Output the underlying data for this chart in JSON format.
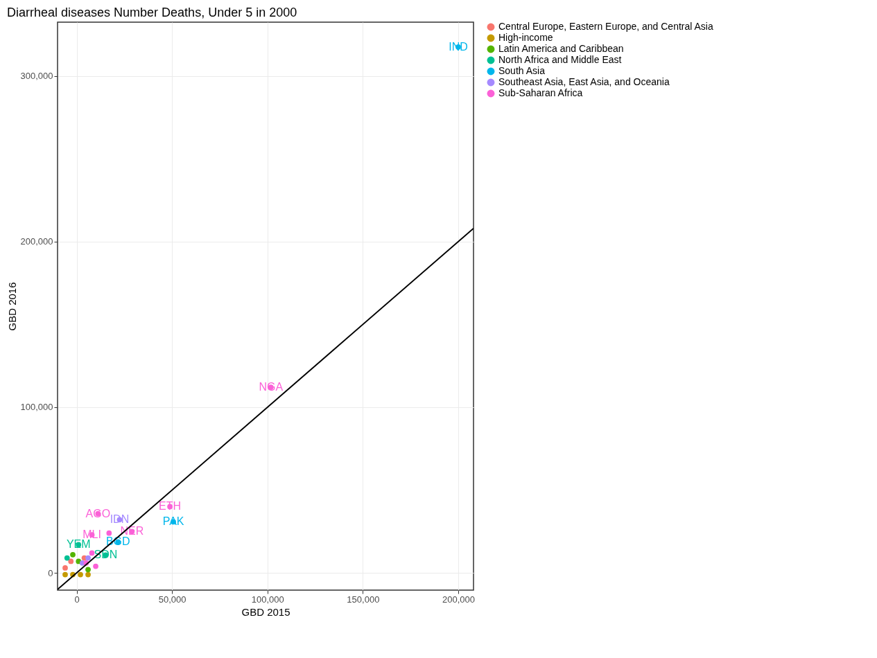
{
  "chart_data": {
    "type": "scatter",
    "title": "Diarrheal diseases Number Deaths, Under 5 in 2000",
    "xlabel": "GBD 2015",
    "ylabel": "GBD 2016",
    "xlim": [
      -10000,
      208000
    ],
    "ylim": [
      -10400,
      332500
    ],
    "xticks": [
      0,
      {
        "value": 50000,
        "label": "50,000"
      },
      {
        "value": 100000,
        "label": "100,000"
      },
      {
        "value": 150000,
        "label": "150,000"
      },
      {
        "value": 200000,
        "label": "200,000"
      }
    ],
    "yticks": [
      0,
      {
        "value": 100000,
        "label": "100,000"
      },
      {
        "value": 200000,
        "label": "200,000"
      },
      {
        "value": 300000,
        "label": "300,000"
      }
    ],
    "grid": true,
    "legend": "right",
    "marker": "circle",
    "series": [
      {
        "name": "Central Europe, Eastern Europe, and Central Asia",
        "color": "#f8766d",
        "x": [
          -6000,
          -3000,
          4000
        ],
        "values": [
          3000,
          7000,
          9000
        ],
        "value_labels": [
          null,
          null,
          null
        ]
      },
      {
        "name": "High-income",
        "color": "#c49a00",
        "x": [
          -6000,
          -2000,
          2000,
          6000
        ],
        "values": [
          -1000,
          -1000,
          -1000,
          -1000
        ],
        "value_labels": [
          null,
          null,
          null,
          null
        ]
      },
      {
        "name": "Latin America and Caribbean",
        "color": "#53b400",
        "x": [
          -2000,
          1000,
          6000
        ],
        "values": [
          11000,
          7000,
          2000
        ],
        "value_labels": [
          null,
          null,
          null
        ]
      },
      {
        "name": "North Africa and Middle East",
        "color": "#00c094",
        "x": [
          15200,
          1000,
          -5000
        ],
        "values": [
          10800,
          17000,
          9000
        ],
        "value_labels": [
          "SDN",
          "YEM",
          null
        ]
      },
      {
        "name": "South Asia",
        "color": "#00b6eb",
        "x": [
          200000,
          50700,
          21700
        ],
        "values": [
          317500,
          30800,
          18700
        ],
        "value_labels": [
          "IND",
          "PAK",
          "BGD"
        ]
      },
      {
        "name": "Southeast Asia, East Asia, and Oceania",
        "color": "#a58aff",
        "x": [
          22500,
          3000,
          6000
        ],
        "values": [
          32100,
          6000,
          9000
        ],
        "value_labels": [
          "IDN",
          null,
          null
        ]
      },
      {
        "name": "Sub-Saharan Africa",
        "color": "#fb61d7",
        "x": [
          101800,
          48900,
          11200,
          29000,
          17000,
          8000,
          8000,
          5000,
          10000
        ],
        "values": [
          112100,
          40000,
          35800,
          25000,
          24000,
          23000,
          12000,
          6000,
          4000
        ],
        "value_labels": [
          "NGA",
          "ETH",
          "AGO",
          "NER",
          null,
          "MLI",
          null,
          null,
          null
        ]
      },
      {
        "type": "line",
        "color": "#000000",
        "marker": "none",
        "x": [
          -10000,
          208000
        ],
        "values": [
          -10000,
          208000
        ]
      }
    ]
  }
}
